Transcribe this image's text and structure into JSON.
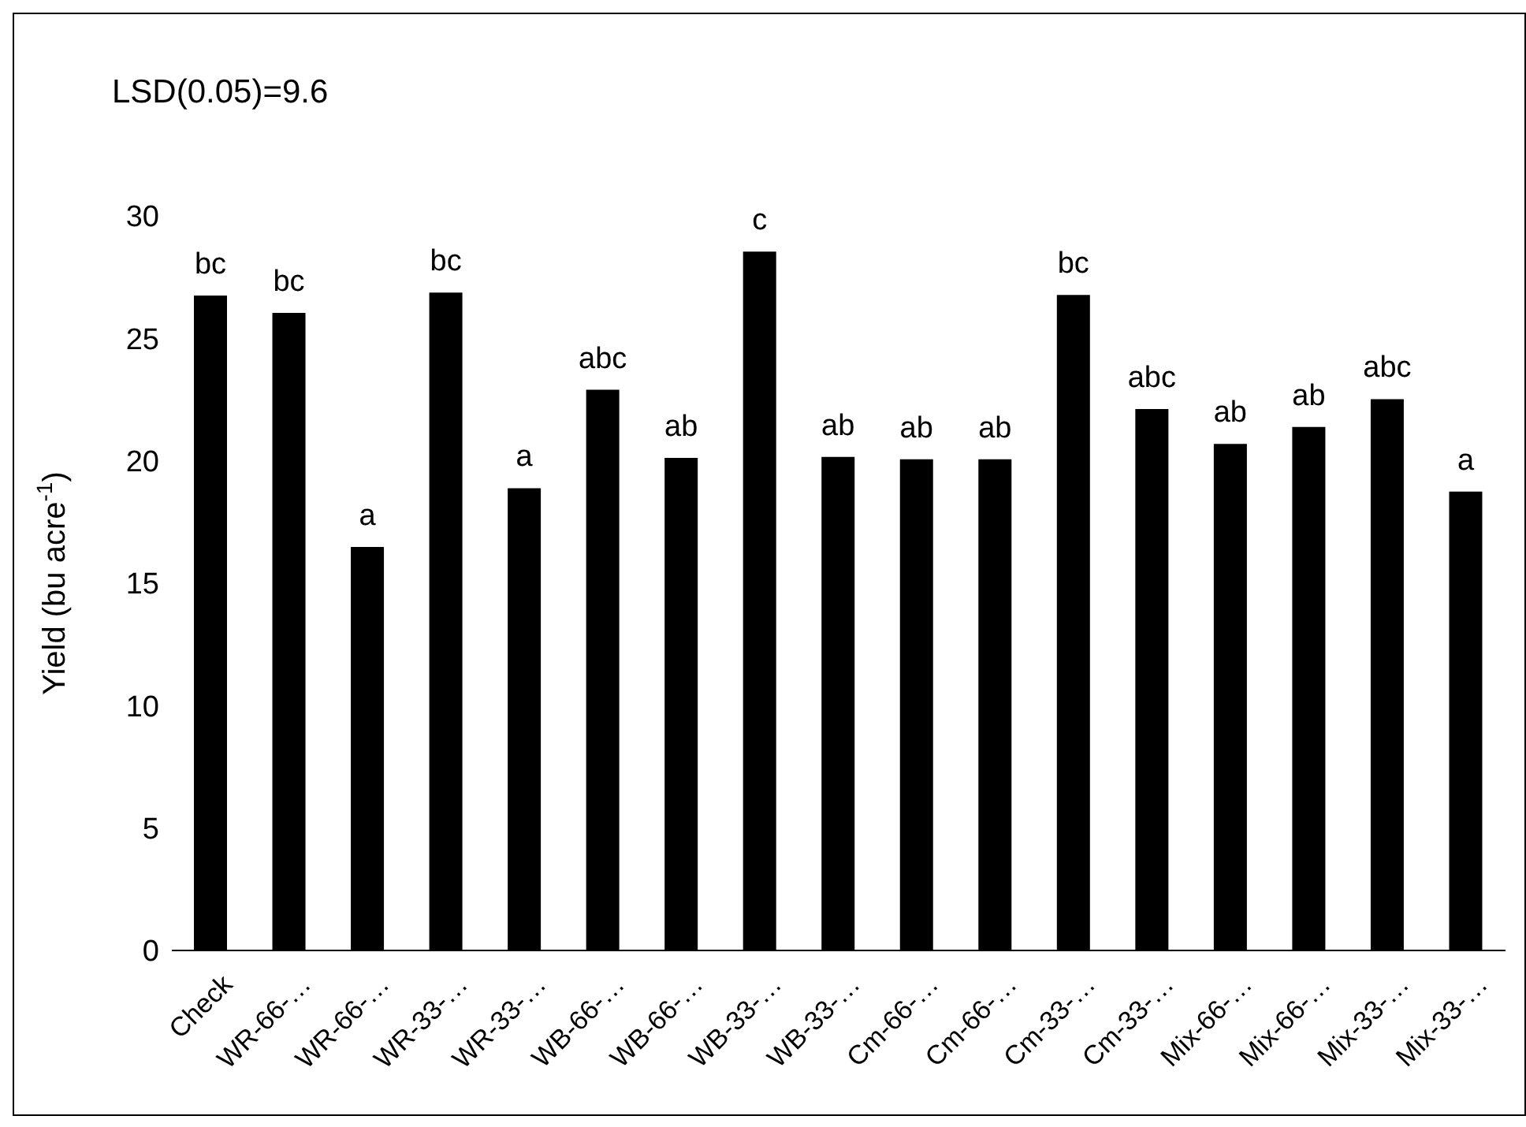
{
  "chart_data": {
    "type": "bar",
    "title": "LSD(0.05)=9.6",
    "ylabel": "Yield (bu acre$^{-1}$)",
    "categories": [
      "Check",
      "WR-66-…",
      "WR-66-…",
      "WR-33-…",
      "WR-33-…",
      "WB-66-…",
      "WB-66-…",
      "WB-33-…",
      "WB-33-…",
      "Cm-66-…",
      "Cm-66-…",
      "Cm-33-…",
      "Cm-33-…",
      "Mix-66-…",
      "Mix-66-…",
      "Mix-33-…",
      "Mix-33-…"
    ],
    "values": [
      26.75,
      26.04,
      16.48,
      26.87,
      18.88,
      22.9,
      20.12,
      28.54,
      20.16,
      20.06,
      20.06,
      26.77,
      22.11,
      20.69,
      21.38,
      22.52,
      18.74
    ],
    "value_labels": [
      "bc",
      "bc",
      "a",
      "bc",
      "a",
      "abc",
      "ab",
      "c",
      "ab",
      "ab",
      "ab",
      "bc",
      "abc",
      "ab",
      "ab",
      "abc",
      "a"
    ],
    "color": "#000000",
    "ylim": [
      0,
      30
    ],
    "yticks": [
      0,
      5,
      10,
      15,
      20,
      25,
      30
    ],
    "grid": false
  }
}
